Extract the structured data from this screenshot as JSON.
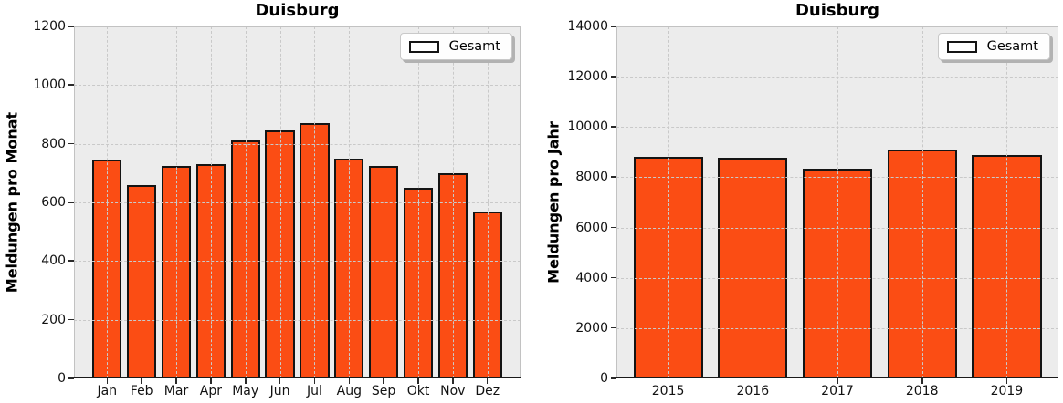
{
  "chart_data": [
    {
      "type": "bar",
      "title": "Duisburg",
      "xlabel": "",
      "ylabel": "Meldungen pro Monat",
      "categories": [
        "Jan",
        "Feb",
        "Mar",
        "Apr",
        "May",
        "Jun",
        "Jul",
        "Aug",
        "Sep",
        "Okt",
        "Nov",
        "Dez"
      ],
      "values": [
        745,
        660,
        725,
        730,
        810,
        845,
        870,
        750,
        725,
        650,
        700,
        570
      ],
      "ylim": [
        0,
        1200
      ],
      "ytick_step": 200,
      "grid": true,
      "legend": [
        "Gesamt"
      ],
      "legend_position": "upper right",
      "bar_color": "#FB4D14",
      "bar_edge_color": "#141414",
      "plot_bg": "#ECECEC"
    },
    {
      "type": "bar",
      "title": "Duisburg",
      "xlabel": "",
      "ylabel": "Meldungen pro Jahr",
      "categories": [
        "2015",
        "2016",
        "2017",
        "2018",
        "2019"
      ],
      "values": [
        8830,
        8790,
        8360,
        9120,
        8900
      ],
      "ylim": [
        0,
        14000
      ],
      "ytick_step": 2000,
      "grid": true,
      "legend": [
        "Gesamt"
      ],
      "legend_position": "upper right",
      "bar_color": "#FB4D14",
      "bar_edge_color": "#141414",
      "plot_bg": "#ECECEC"
    }
  ]
}
